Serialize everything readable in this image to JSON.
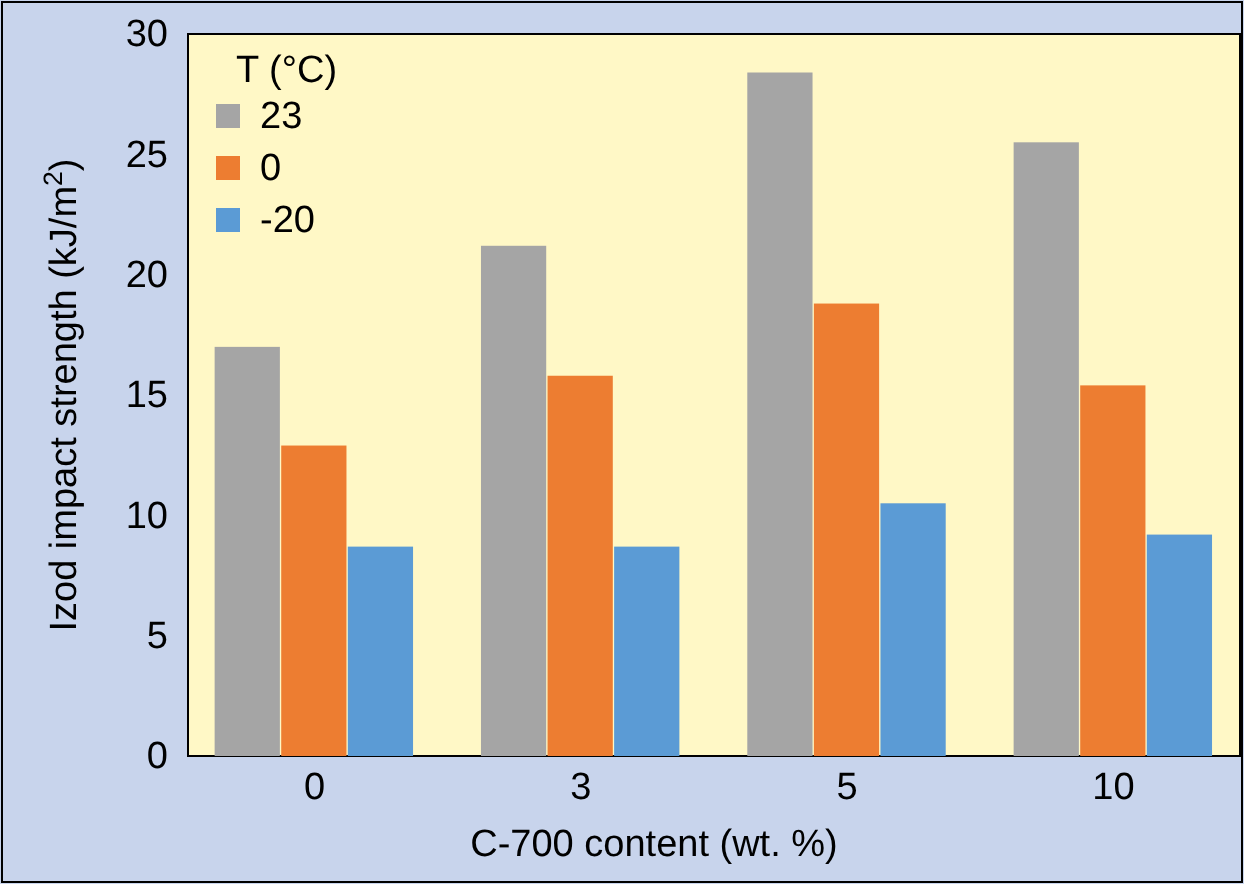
{
  "chart_data": {
    "type": "bar",
    "xlabel": "C-700 content (wt. %)",
    "ylabel": "Izod impact strength (kJ/m$^{2}$)",
    "legend_title": "T (°C)",
    "categories": [
      "0",
      "3",
      "5",
      "10"
    ],
    "series": [
      {
        "name": "23",
        "color": "#a5a5a5",
        "values": [
          17.0,
          21.2,
          28.4,
          25.5
        ]
      },
      {
        "name": "0",
        "color": "#ed7d31",
        "values": [
          12.9,
          15.8,
          18.8,
          15.4
        ]
      },
      {
        "name": "-20",
        "color": "#5b9bd5",
        "values": [
          8.7,
          8.7,
          10.5,
          9.2
        ]
      }
    ],
    "ylim": [
      0,
      30
    ],
    "yticks": [
      0,
      5,
      10,
      15,
      20,
      25,
      30
    ],
    "grid": false,
    "legend": "top left"
  }
}
